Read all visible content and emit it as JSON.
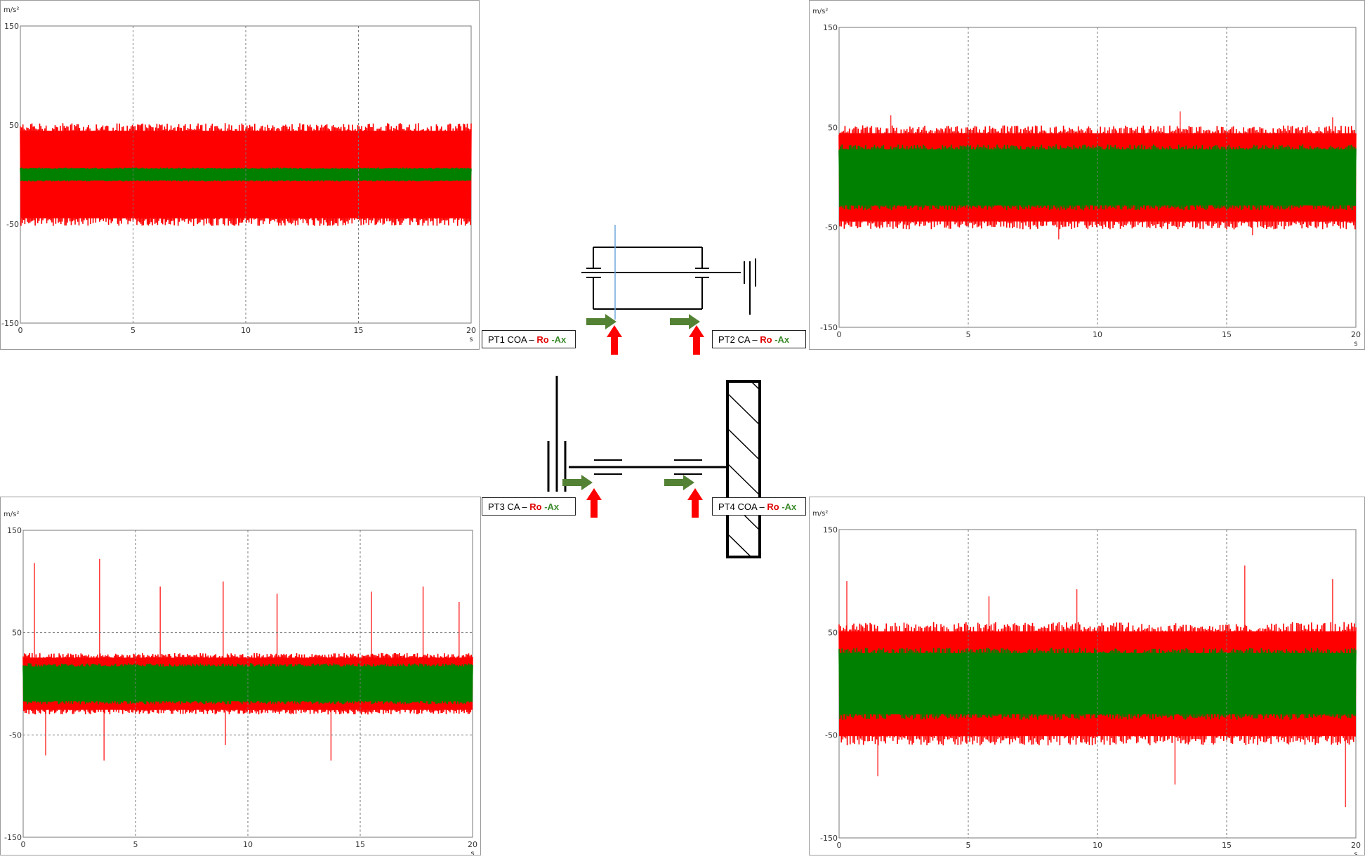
{
  "colors": {
    "rotational": "#ff0000",
    "axial": "#008000",
    "arrow_axial": "#548235",
    "arrow_radial": "#ff0000"
  },
  "labels": [
    {
      "id": "pt1",
      "prefix": "PT1 COA – ",
      "ro": "Ro",
      "sep": " -",
      "ax": "Ax"
    },
    {
      "id": "pt2",
      "prefix": "PT2 CA – ",
      "ro": "Ro",
      "sep": " -",
      "ax": "Ax"
    },
    {
      "id": "pt3",
      "prefix": "PT3 CA – ",
      "ro": "Ro",
      "sep": " -",
      "ax": "Ax"
    },
    {
      "id": "pt4",
      "prefix": "PT4 COA – ",
      "ro": "Ro",
      "sep": " -",
      "ax": "Ax"
    }
  ],
  "chart_data": [
    {
      "id": "pt1",
      "type": "line",
      "yunit": "m/s²",
      "xunit": "s",
      "xlim": [
        0,
        20
      ],
      "ylim": [
        -150,
        150
      ],
      "xticks": [
        0,
        5,
        10,
        15,
        20
      ],
      "yticks": [
        150,
        50,
        -50,
        -150
      ],
      "grid_x": [
        5,
        10,
        15
      ],
      "grid_y": [],
      "series": [
        {
          "color": "#ff0000",
          "band": [
            -52,
            52
          ],
          "spikes": []
        },
        {
          "color": "#008000",
          "band": [
            -7,
            7
          ],
          "spikes": []
        }
      ]
    },
    {
      "id": "pt2",
      "type": "line",
      "yunit": "m/s²",
      "xunit": "s",
      "xlim": [
        0,
        20
      ],
      "ylim": [
        -150,
        150
      ],
      "xticks": [
        0,
        5,
        10,
        15,
        20
      ],
      "yticks": [
        150,
        50,
        -50,
        -150
      ],
      "grid_x": [
        5,
        10,
        15
      ],
      "grid_y": [],
      "series": [
        {
          "color": "#ff0000",
          "band": [
            -52,
            52
          ],
          "spikes": [
            [
              2.0,
              62
            ],
            [
              8.5,
              -62
            ],
            [
              13.2,
              66
            ],
            [
              16.0,
              -58
            ],
            [
              19.1,
              60
            ]
          ]
        },
        {
          "color": "#008000",
          "band": [
            -33,
            33
          ],
          "spikes": []
        }
      ]
    },
    {
      "id": "pt3",
      "type": "line",
      "yunit": "m/s²",
      "xunit": "s",
      "xlim": [
        0,
        20
      ],
      "ylim": [
        -150,
        150
      ],
      "xticks": [
        0,
        5,
        10,
        15,
        20
      ],
      "yticks": [
        150,
        50,
        -50,
        -150
      ],
      "grid_x": [
        5,
        10,
        15
      ],
      "grid_y": [
        50,
        -50
      ],
      "series": [
        {
          "color": "#ff0000",
          "band": [
            -30,
            30
          ],
          "spikes": [
            [
              0.5,
              118
            ],
            [
              1.0,
              -70
            ],
            [
              3.4,
              122
            ],
            [
              3.6,
              -75
            ],
            [
              6.1,
              95
            ],
            [
              8.9,
              100
            ],
            [
              9.0,
              -60
            ],
            [
              11.3,
              88
            ],
            [
              13.7,
              -75
            ],
            [
              15.5,
              90
            ],
            [
              17.8,
              95
            ],
            [
              19.4,
              80
            ]
          ]
        },
        {
          "color": "#008000",
          "band": [
            -20,
            20
          ],
          "spikes": []
        }
      ]
    },
    {
      "id": "pt4",
      "type": "line",
      "yunit": "m/s²",
      "xunit": "s",
      "xlim": [
        0,
        20
      ],
      "ylim": [
        -150,
        150
      ],
      "xticks": [
        0,
        5,
        10,
        15,
        20
      ],
      "yticks": [
        150,
        50,
        -50,
        -150
      ],
      "grid_x": [
        5,
        10,
        15
      ],
      "grid_y": [],
      "series": [
        {
          "color": "#ff0000",
          "band": [
            -60,
            60
          ],
          "spikes": [
            [
              0.3,
              100
            ],
            [
              1.5,
              -90
            ],
            [
              5.8,
              85
            ],
            [
              9.2,
              92
            ],
            [
              13.0,
              -98
            ],
            [
              15.7,
              115
            ],
            [
              19.1,
              102
            ],
            [
              19.6,
              -120
            ]
          ]
        },
        {
          "color": "#008000",
          "band": [
            -35,
            35
          ],
          "spikes": []
        }
      ]
    }
  ]
}
